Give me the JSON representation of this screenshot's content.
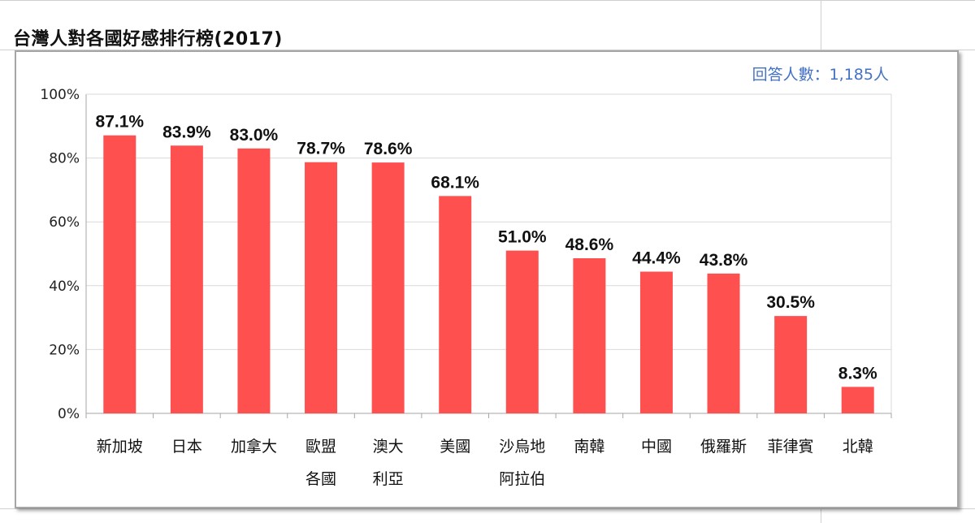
{
  "title": "台灣人對各國好感排行榜(2017)",
  "respondents_note": "回答人數：1,185人",
  "colors": {
    "bar": "#ff5050",
    "grid": "#d9d9d9",
    "note": "#4472c4"
  },
  "chart_data": {
    "type": "bar",
    "title": "",
    "xlabel": "",
    "ylabel": "",
    "ylim": [
      0,
      100
    ],
    "yticks": [
      "0%",
      "20%",
      "40%",
      "60%",
      "80%",
      "100%"
    ],
    "grid": true,
    "categories": [
      [
        "新加坡"
      ],
      [
        "日本"
      ],
      [
        "加拿大"
      ],
      [
        "歐盟",
        "各國"
      ],
      [
        "澳大",
        "利亞"
      ],
      [
        "美國"
      ],
      [
        "沙烏地",
        "阿拉伯"
      ],
      [
        "南韓"
      ],
      [
        "中國"
      ],
      [
        "俄羅斯"
      ],
      [
        "菲律賓"
      ],
      [
        "北韓"
      ]
    ],
    "values": [
      87.1,
      83.9,
      83.0,
      78.7,
      78.6,
      68.1,
      51.0,
      48.6,
      44.4,
      43.8,
      30.5,
      8.3
    ],
    "value_labels": [
      "87.1%",
      "83.9%",
      "83.0%",
      "78.7%",
      "78.6%",
      "68.1%",
      "51.0%",
      "48.6%",
      "44.4%",
      "43.8%",
      "30.5%",
      "8.3%"
    ]
  }
}
